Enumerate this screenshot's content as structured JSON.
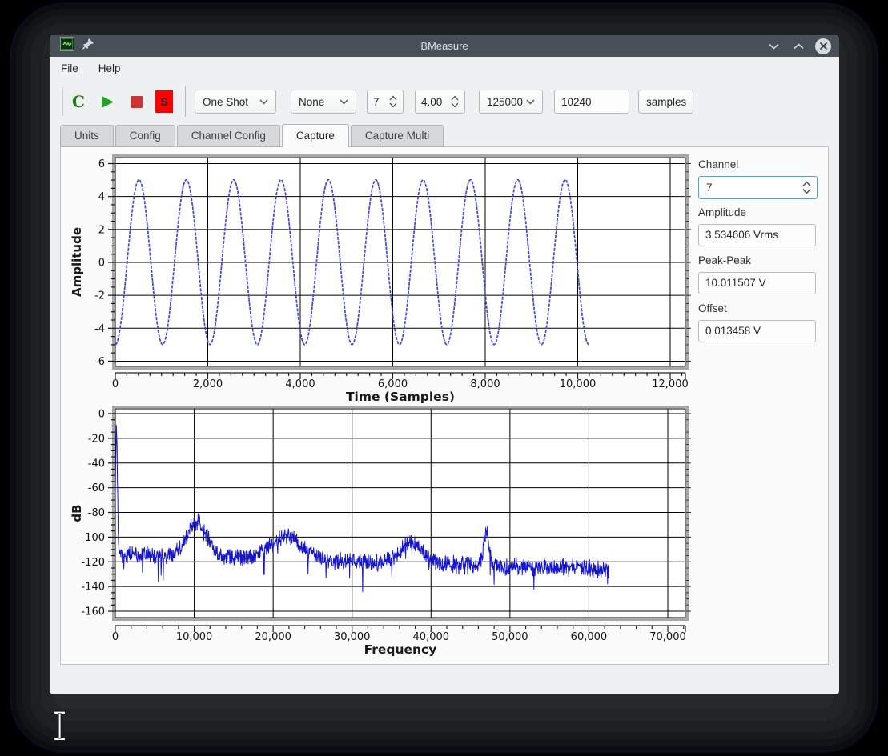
{
  "window": {
    "title": "BMeasure",
    "controls": [
      "minimize",
      "maximize",
      "close"
    ]
  },
  "menu": {
    "items": [
      "File",
      "Help"
    ]
  },
  "toolbar": {
    "connect_label": "C",
    "script_label": "S",
    "mode_select": "One Shot",
    "trigger_select": "None",
    "channel_spin": "7",
    "level_spin": "4.00",
    "rate_select": "125000",
    "samples_value": "10240",
    "units_select": "samples"
  },
  "tabs": {
    "items": [
      "Units",
      "Config",
      "Channel Config",
      "Capture",
      "Capture Multi"
    ],
    "active": "Capture"
  },
  "sidebar": {
    "channel": {
      "label": "Channel",
      "value": "7"
    },
    "amplitude": {
      "label": "Amplitude",
      "value": "3.534606 Vrms"
    },
    "peak_peak": {
      "label": "Peak-Peak",
      "value": "10.011507 V"
    },
    "offset": {
      "label": "Offset",
      "value": "0.013458 V"
    }
  },
  "colors": {
    "accent": "#3daee2",
    "titlebar": "#474f58",
    "sine_trace": "#4646d4",
    "spectrum_trace": "#1515cd",
    "green_icon": "#1b7e1b",
    "red_icon": "#cf3434",
    "s_button_red": "#fe0000"
  },
  "chart_data": [
    {
      "type": "line",
      "title": "",
      "xlabel": "Time (Samples)",
      "ylabel": "Amplitude",
      "xlim": [
        0,
        12000
      ],
      "ylim": [
        -6,
        6
      ],
      "x_major": 2000,
      "x_minor": 250,
      "y_major": 2,
      "y_minor": 0.5,
      "grid": true,
      "color": "#4646d4",
      "signal": {
        "kind": "sine",
        "amplitude": 5.0058,
        "offset": 0.0135,
        "period_samples": 1024,
        "n_samples": 10240,
        "cycles": 10,
        "phase": "starts-at-trough"
      }
    },
    {
      "type": "line",
      "title": "",
      "xlabel": "Frequency",
      "ylabel": "dB",
      "xlim": [
        0,
        70000
      ],
      "ylim": [
        -160,
        0
      ],
      "x_major": 10000,
      "x_minor": 2000,
      "y_major": 20,
      "y_minor": 5,
      "grid": true,
      "color": "#1515cd",
      "signal": {
        "kind": "spectrum",
        "f_max": 62500,
        "noise_floor_start_db": -114,
        "noise_floor_end_db": -126,
        "noise_spread_db": 11,
        "peaks": [
          {
            "f": 150,
            "db": -12,
            "sigma": 120
          },
          {
            "f": 10300,
            "db": -88,
            "sigma": 1300
          },
          {
            "f": 21800,
            "db": -100,
            "sigma": 2000
          },
          {
            "f": 37500,
            "db": -106,
            "sigma": 1500
          },
          {
            "f": 47000,
            "db": -95,
            "sigma": 300
          }
        ]
      }
    }
  ]
}
